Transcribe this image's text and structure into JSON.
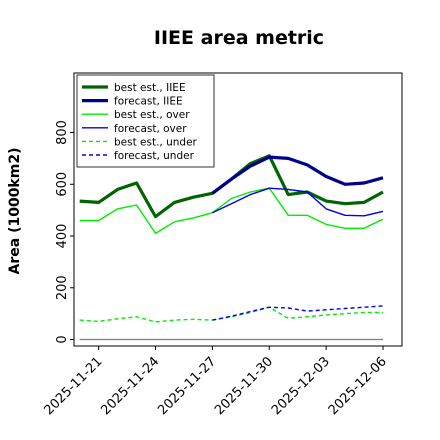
{
  "chart_data": {
    "type": "line",
    "title": "IIEE area metric",
    "xlabel": "",
    "ylabel": "Area (1000km2)",
    "ylim": [
      -25,
      1030
    ],
    "yticks": [
      0,
      200,
      400,
      600,
      800
    ],
    "x_start": "2025-11-20",
    "xticks": [
      {
        "day": 1,
        "label": "2025-11-21",
        "color": "#000000"
      },
      {
        "day": 4,
        "label": "2025-11-24",
        "color": "#000000"
      },
      {
        "day": 7,
        "label": "2025-11-27",
        "color": "#228b22"
      },
      {
        "day": 10,
        "label": "2025-11-30",
        "color": "#000000"
      },
      {
        "day": 13,
        "label": "2025-12-03",
        "color": "#000000"
      },
      {
        "day": 16,
        "label": "2025-12-06",
        "color": "#000000"
      }
    ],
    "legend_position": "top-left",
    "grid": false,
    "series": [
      {
        "name": "best est., IIEE",
        "color": "#006400",
        "width": 3.2,
        "dash": "",
        "x": [
          0,
          1,
          2,
          3,
          4,
          5,
          6,
          7,
          8,
          9,
          10,
          11,
          12,
          13,
          14,
          15,
          16
        ],
        "y": [
          535,
          530,
          580,
          605,
          475,
          530,
          550,
          565,
          620,
          680,
          710,
          560,
          570,
          535,
          525,
          530,
          570
        ]
      },
      {
        "name": "forecast, IIEE",
        "color": "#00008b",
        "width": 3.2,
        "dash": "",
        "x": [
          7,
          8,
          9,
          10,
          11,
          12,
          13,
          14,
          15,
          16
        ],
        "y": [
          565,
          620,
          670,
          705,
          700,
          675,
          630,
          600,
          605,
          625
        ]
      },
      {
        "name": "best est., over",
        "color": "#00ee00",
        "width": 1.4,
        "dash": "",
        "x": [
          0,
          1,
          2,
          3,
          4,
          5,
          6,
          7,
          8,
          9,
          10,
          11,
          12,
          13,
          14,
          15,
          16
        ],
        "y": [
          460,
          460,
          505,
          520,
          410,
          455,
          470,
          490,
          545,
          570,
          585,
          480,
          480,
          445,
          430,
          430,
          465
        ]
      },
      {
        "name": "forecast, over",
        "color": "#0000ee",
        "width": 1.4,
        "dash": "",
        "x": [
          7,
          8,
          9,
          10,
          11,
          12,
          13,
          14,
          15,
          16
        ],
        "y": [
          490,
          525,
          560,
          585,
          580,
          570,
          505,
          480,
          478,
          495
        ]
      },
      {
        "name": "best est., under",
        "color": "#00ee00",
        "width": 1.4,
        "dash": "4,3",
        "x": [
          0,
          1,
          2,
          3,
          4,
          5,
          6,
          7,
          8,
          9,
          10,
          11,
          12,
          13,
          14,
          15,
          16
        ],
        "y": [
          75,
          70,
          80,
          88,
          68,
          75,
          78,
          75,
          88,
          105,
          125,
          82,
          88,
          95,
          100,
          105,
          105
        ]
      },
      {
        "name": "forecast, under",
        "color": "#0000ee",
        "width": 1.4,
        "dash": "4,3",
        "x": [
          7,
          8,
          9,
          10,
          11,
          12,
          13,
          14,
          15,
          16
        ],
        "y": [
          75,
          90,
          108,
          125,
          122,
          110,
          115,
          120,
          125,
          130
        ]
      }
    ],
    "baseline": {
      "color": "#808080",
      "y": 0,
      "x": [
        0,
        16
      ]
    }
  }
}
